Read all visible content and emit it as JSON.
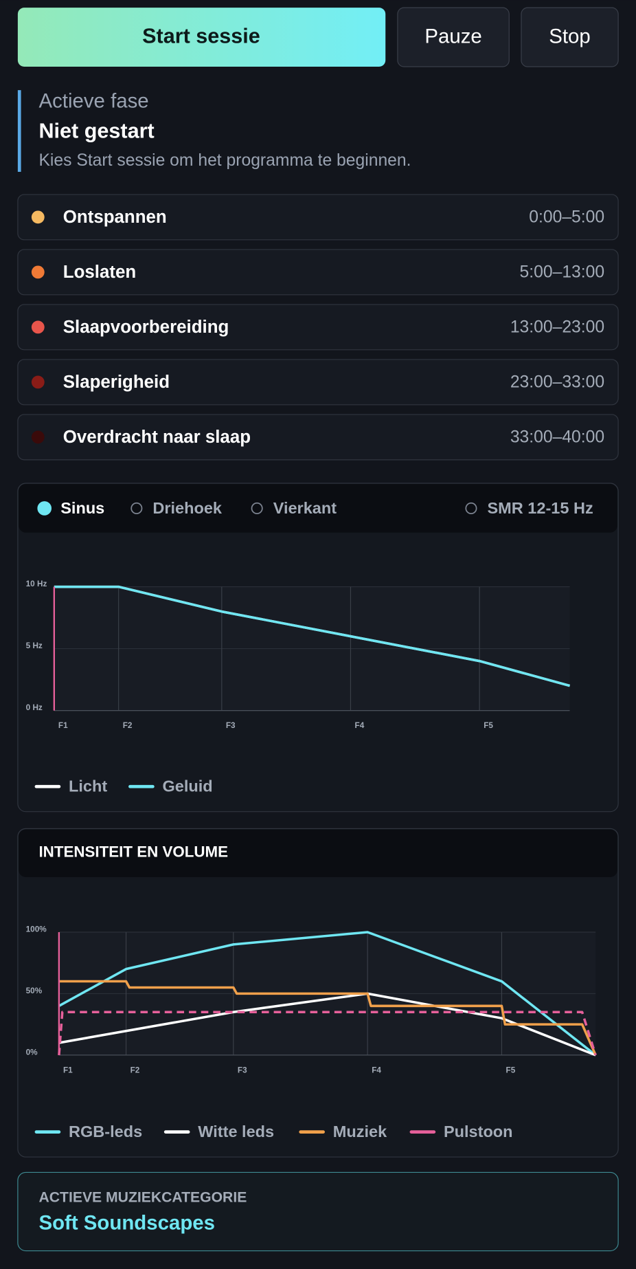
{
  "controls": {
    "start": "Start sessie",
    "pause": "Pauze",
    "stop": "Stop"
  },
  "active_phase": {
    "label": "Actieve fase",
    "name": "Niet gestart",
    "description": "Kies Start sessie om het programma te beginnen."
  },
  "phases": [
    {
      "name": "Ontspannen",
      "time": "0:00–5:00",
      "color": "#f5b961"
    },
    {
      "name": "Loslaten",
      "time": "5:00–13:00",
      "color": "#f07a36"
    },
    {
      "name": "Slaapvoorbereiding",
      "time": "13:00–23:00",
      "color": "#e8554b"
    },
    {
      "name": "Slaperigheid",
      "time": "23:00–33:00",
      "color": "#8a1c17"
    },
    {
      "name": "Overdracht naar slaap",
      "time": "33:00–40:00",
      "color": "#3a0a0a"
    }
  ],
  "waveforms": {
    "options": [
      "Sinus",
      "Driehoek",
      "Vierkant",
      "SMR 12-15 Hz"
    ],
    "selected": 0
  },
  "chart_data": [
    {
      "type": "line",
      "xlim": [
        0,
        40
      ],
      "ylim": [
        0,
        10
      ],
      "xticks": [
        {
          "value": 0,
          "label": "F1"
        },
        {
          "value": 5,
          "label": "F2"
        },
        {
          "value": 13,
          "label": "F3"
        },
        {
          "value": 23,
          "label": "F4"
        },
        {
          "value": 33,
          "label": "F5"
        }
      ],
      "yticks": [
        {
          "value": 0,
          "label": "0 Hz"
        },
        {
          "value": 5,
          "label": "5 Hz"
        },
        {
          "value": 10,
          "label": "10 Hz"
        }
      ],
      "grid": true,
      "cursor": 0,
      "cursor_color": "#e6609a",
      "series": [
        {
          "name": "Licht",
          "color": "#ffffff",
          "x": [
            0,
            5,
            13,
            23,
            33,
            40
          ],
          "values": [
            10,
            10,
            8,
            6,
            4,
            2
          ]
        },
        {
          "name": "Geluid",
          "color": "#6fe6f2",
          "x": [
            0,
            5,
            13,
            23,
            33,
            40
          ],
          "values": [
            10,
            10,
            8,
            6,
            4,
            2
          ]
        }
      ]
    },
    {
      "type": "line",
      "title": "INTENSITEIT EN VOLUME",
      "xlim": [
        0,
        40
      ],
      "ylim": [
        0,
        100
      ],
      "xticks": [
        {
          "value": 0,
          "label": "F1"
        },
        {
          "value": 5,
          "label": "F2"
        },
        {
          "value": 13,
          "label": "F3"
        },
        {
          "value": 23,
          "label": "F4"
        },
        {
          "value": 33,
          "label": "F5"
        }
      ],
      "yticks": [
        {
          "value": 0,
          "label": "0%"
        },
        {
          "value": 50,
          "label": "50%"
        },
        {
          "value": 100,
          "label": "100%"
        }
      ],
      "grid": true,
      "cursor": 0,
      "cursor_color": "#e6609a",
      "series": [
        {
          "name": "RGB-leds",
          "color": "#6fe6f2",
          "x": [
            0,
            5,
            13,
            23,
            33,
            40
          ],
          "values": [
            40,
            70,
            90,
            100,
            60,
            0
          ]
        },
        {
          "name": "Witte leds",
          "color": "#ffffff",
          "x": [
            0,
            13,
            23,
            33,
            40
          ],
          "values": [
            10,
            35,
            50,
            30,
            0
          ]
        },
        {
          "name": "Muziek",
          "color": "#f0a04b",
          "x": [
            0,
            5,
            5.25,
            13,
            13.25,
            23,
            23.25,
            33,
            33.25,
            39,
            40
          ],
          "values": [
            60,
            60,
            55,
            55,
            50,
            50,
            40,
            40,
            25,
            25,
            0
          ]
        },
        {
          "name": "Pulstoon",
          "color": "#e6609a",
          "style": "dashed",
          "x": [
            0,
            0.25,
            39,
            40
          ],
          "values": [
            0,
            35,
            35,
            0
          ]
        }
      ]
    }
  ],
  "music": {
    "label": "ACTIEVE MUZIEKCATEGORIE",
    "name": "Soft Soundscapes"
  }
}
